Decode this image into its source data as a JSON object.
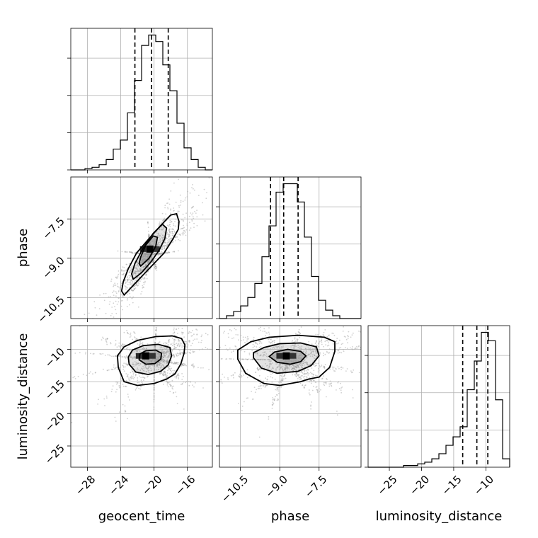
{
  "chart_data": {
    "type": "corner",
    "grid": true,
    "parameters": [
      "geocent_time",
      "phase",
      "luminosity_distance"
    ],
    "axis_labels": [
      "geocent_time",
      "phase",
      "luminosity_distance"
    ],
    "ranges": {
      "geocent_time": [
        -30.0,
        -13.0
      ],
      "phase": [
        -11.3,
        -5.9
      ],
      "luminosity_distance": [
        -28.3,
        -6.3
      ]
    },
    "ticks": {
      "geocent_time": [
        -28,
        -24,
        -20,
        -16
      ],
      "phase": [
        -10.5,
        -9.0,
        -7.5
      ],
      "luminosity_distance": [
        -25,
        -20,
        -15,
        -10
      ]
    },
    "tick_labels": {
      "geocent_time": [
        "−28",
        "−24",
        "−20",
        "−16"
      ],
      "phase": [
        "−10.5",
        "−9.0",
        "−7.5"
      ],
      "luminosity_distance": [
        "−25",
        "−20",
        "−15",
        "−10"
      ]
    },
    "quantiles": {
      "geocent_time": [
        -22.3,
        -20.3,
        -18.3
      ],
      "phase": [
        -9.35,
        -8.85,
        -8.3
      ],
      "luminosity_distance": [
        -13.6,
        -11.4,
        -9.7
      ]
    },
    "histograms": {
      "geocent_time": {
        "edges": [
          -30.0,
          -29.15,
          -28.3,
          -27.45,
          -26.6,
          -25.75,
          -24.9,
          -24.05,
          -23.2,
          -22.35,
          -21.5,
          -20.65,
          -19.8,
          -18.95,
          -18.1,
          -17.25,
          -16.4,
          -15.55,
          -14.7,
          -13.85,
          -13.0
        ],
        "counts": [
          0,
          0,
          1,
          2,
          4,
          8,
          16,
          23,
          44,
          69,
          96,
          104,
          99,
          81,
          61,
          36,
          17,
          8,
          2,
          0
        ]
      },
      "phase": {
        "edges": [
          -11.3,
          -11.03,
          -10.76,
          -10.49,
          -10.22,
          -9.95,
          -9.68,
          -9.41,
          -9.14,
          -8.87,
          -8.6,
          -8.33,
          -8.06,
          -7.79,
          -7.52,
          -7.25,
          -6.98,
          -6.71,
          -6.44,
          -6.17,
          -5.9
        ],
        "counts": [
          0,
          2,
          5,
          9,
          15,
          25,
          44,
          66,
          90,
          96,
          96,
          83,
          58,
          30,
          13,
          6,
          2,
          0,
          0,
          0
        ]
      },
      "luminosity_distance": {
        "edges": [
          -28.3,
          -27.2,
          -26.1,
          -25.0,
          -23.9,
          -22.8,
          -21.7,
          -20.6,
          -19.5,
          -18.4,
          -17.3,
          -16.2,
          -15.1,
          -14.0,
          -12.9,
          -11.8,
          -10.7,
          -9.6,
          -8.5,
          -7.4,
          -6.3
        ],
        "counts": [
          0,
          0,
          0,
          0,
          0,
          1,
          1,
          2,
          3,
          5,
          8,
          13,
          18,
          24,
          46,
          63,
          80,
          75,
          40,
          5
        ]
      }
    },
    "pairs": [
      {
        "x": "geocent_time",
        "y": "phase",
        "peak": [
          -20.5,
          -8.65
        ],
        "contour_levels": [
          [
            [
              -23.6,
              -10.4
            ],
            [
              -22.7,
              -10.1
            ],
            [
              -21.8,
              -9.8
            ],
            [
              -20.9,
              -9.5
            ],
            [
              -20.0,
              -9.2
            ],
            [
              -18.8,
              -8.8
            ],
            [
              -17.8,
              -8.3
            ],
            [
              -17.1,
              -7.9
            ],
            [
              -17.0,
              -7.6
            ],
            [
              -17.3,
              -7.3
            ],
            [
              -18.0,
              -7.35
            ],
            [
              -19.2,
              -7.75
            ],
            [
              -20.6,
              -8.25
            ],
            [
              -22.1,
              -8.8
            ],
            [
              -23.1,
              -9.4
            ],
            [
              -23.7,
              -9.9
            ],
            [
              -23.9,
              -10.25
            ]
          ],
          [
            [
              -22.5,
              -9.8
            ],
            [
              -21.5,
              -9.55
            ],
            [
              -20.4,
              -9.15
            ],
            [
              -19.4,
              -8.7
            ],
            [
              -18.7,
              -8.25
            ],
            [
              -18.5,
              -7.85
            ],
            [
              -19.0,
              -7.7
            ],
            [
              -20.1,
              -8.05
            ],
            [
              -21.3,
              -8.6
            ],
            [
              -22.3,
              -9.2
            ],
            [
              -22.7,
              -9.6
            ]
          ],
          [
            [
              -21.6,
              -9.3
            ],
            [
              -20.6,
              -9.0
            ],
            [
              -19.8,
              -8.55
            ],
            [
              -19.6,
              -8.2
            ],
            [
              -20.1,
              -8.15
            ],
            [
              -21.0,
              -8.5
            ],
            [
              -21.6,
              -8.95
            ],
            [
              -21.8,
              -9.2
            ]
          ]
        ]
      },
      {
        "x": "geocent_time",
        "y": "luminosity_distance",
        "peak": [
          -21.0,
          -11.0
        ],
        "contour_levels": [
          [
            [
              -24.3,
              -12.8
            ],
            [
              -23.6,
              -15.0
            ],
            [
              -22.0,
              -15.6
            ],
            [
              -20.0,
              -15.3
            ],
            [
              -18.5,
              -14.6
            ],
            [
              -17.5,
              -13.8
            ],
            [
              -16.8,
              -12.3
            ],
            [
              -16.4,
              -10.6
            ],
            [
              -16.3,
              -9.3
            ],
            [
              -16.7,
              -8.3
            ],
            [
              -17.8,
              -7.9
            ],
            [
              -19.8,
              -8.0
            ],
            [
              -22.0,
              -8.6
            ],
            [
              -23.6,
              -9.6
            ],
            [
              -24.4,
              -11.0
            ]
          ],
          [
            [
              -23.0,
              -12.3
            ],
            [
              -22.2,
              -13.5
            ],
            [
              -20.7,
              -13.9
            ],
            [
              -19.2,
              -13.4
            ],
            [
              -18.3,
              -12.4
            ],
            [
              -17.9,
              -11.0
            ],
            [
              -18.1,
              -9.7
            ],
            [
              -19.5,
              -9.2
            ],
            [
              -21.3,
              -9.4
            ],
            [
              -22.6,
              -10.1
            ],
            [
              -23.1,
              -11.2
            ]
          ],
          [
            [
              -21.8,
              -11.6
            ],
            [
              -21.0,
              -12.3
            ],
            [
              -19.9,
              -12.2
            ],
            [
              -19.2,
              -11.5
            ],
            [
              -19.1,
              -10.6
            ],
            [
              -19.8,
              -10.1
            ],
            [
              -21.0,
              -10.2
            ],
            [
              -21.7,
              -10.7
            ]
          ]
        ]
      },
      {
        "x": "phase",
        "y": "luminosity_distance",
        "peak": [
          -8.75,
          -11.0
        ],
        "contour_levels": [
          [
            [
              -10.6,
              -11.5
            ],
            [
              -10.3,
              -13.7
            ],
            [
              -9.6,
              -15.3
            ],
            [
              -9.0,
              -15.6
            ],
            [
              -8.2,
              -15.0
            ],
            [
              -7.9,
              -14.6
            ],
            [
              -7.5,
              -14.3
            ],
            [
              -7.1,
              -12.8
            ],
            [
              -6.9,
              -10.3
            ],
            [
              -6.9,
              -8.8
            ],
            [
              -7.3,
              -8.1
            ],
            [
              -8.3,
              -7.8
            ],
            [
              -9.4,
              -8.1
            ],
            [
              -10.1,
              -8.8
            ],
            [
              -10.6,
              -10.1
            ]
          ],
          [
            [
              -10.0,
              -11.3
            ],
            [
              -9.7,
              -12.9
            ],
            [
              -9.1,
              -13.7
            ],
            [
              -8.3,
              -13.4
            ],
            [
              -7.8,
              -12.5
            ],
            [
              -7.5,
              -11.0
            ],
            [
              -7.6,
              -9.6
            ],
            [
              -8.2,
              -9.0
            ],
            [
              -9.0,
              -9.1
            ],
            [
              -9.6,
              -9.7
            ],
            [
              -10.0,
              -10.5
            ]
          ],
          [
            [
              -9.4,
              -11.1
            ],
            [
              -9.1,
              -12.0
            ],
            [
              -8.6,
              -12.3
            ],
            [
              -8.2,
              -11.9
            ],
            [
              -8.0,
              -11.0
            ],
            [
              -8.2,
              -10.3
            ],
            [
              -8.7,
              -10.0
            ],
            [
              -9.2,
              -10.4
            ]
          ]
        ]
      }
    ]
  }
}
